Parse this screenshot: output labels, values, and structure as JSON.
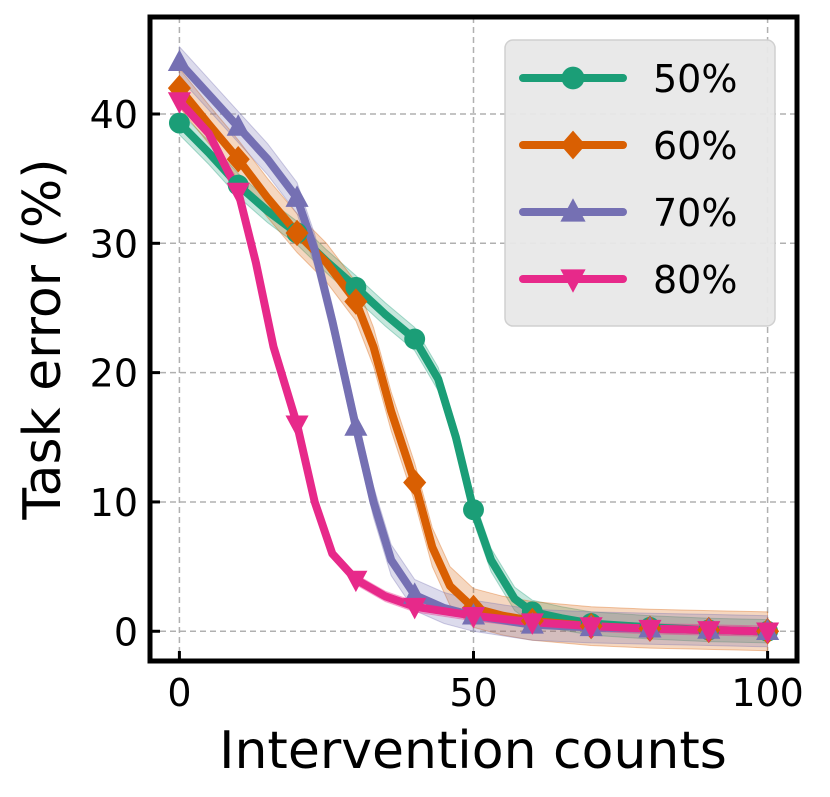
{
  "chart_data": {
    "type": "line",
    "title": "",
    "xlabel": "Intervention counts",
    "ylabel": "Task error (%)",
    "xlim": [
      -5,
      105
    ],
    "ylim": [
      -2.3,
      47.5
    ],
    "xticks": [
      0,
      50,
      100
    ],
    "yticks": [
      0,
      10,
      20,
      30,
      40
    ],
    "grid": true,
    "legend_position": "top-right",
    "x": [
      0,
      10,
      20,
      30,
      40,
      50,
      60,
      70,
      80,
      90,
      100
    ],
    "series": [
      {
        "name": "50%",
        "color": "#1b9e77",
        "marker": "circle",
        "values": [
          39.3,
          34.5,
          30.8,
          26.6,
          22.6,
          9.4,
          1.5,
          0.6,
          0.3,
          0.1,
          0.0
        ],
        "curve": [
          [
            0,
            39.3
          ],
          [
            5,
            37.0
          ],
          [
            10,
            34.5
          ],
          [
            15,
            32.5
          ],
          [
            20,
            30.8
          ],
          [
            25,
            28.6
          ],
          [
            30,
            26.6
          ],
          [
            35,
            24.5
          ],
          [
            40,
            22.6
          ],
          [
            44,
            19.5
          ],
          [
            47,
            15.0
          ],
          [
            50,
            9.4
          ],
          [
            53,
            5.5
          ],
          [
            57,
            2.5
          ],
          [
            60,
            1.5
          ],
          [
            65,
            1.0
          ],
          [
            70,
            0.6
          ],
          [
            80,
            0.3
          ],
          [
            90,
            0.1
          ],
          [
            100,
            0.0
          ]
        ],
        "band": 0.9
      },
      {
        "name": "60%",
        "color": "#d95f02",
        "marker": "diamond",
        "values": [
          42.0,
          36.5,
          30.8,
          25.5,
          11.5,
          1.8,
          0.8,
          0.4,
          0.2,
          0.1,
          0.0
        ],
        "curve": [
          [
            0,
            42.0
          ],
          [
            5,
            39.2
          ],
          [
            10,
            36.5
          ],
          [
            15,
            33.5
          ],
          [
            20,
            30.8
          ],
          [
            25,
            28.5
          ],
          [
            30,
            25.5
          ],
          [
            33,
            22.0
          ],
          [
            36,
            17.0
          ],
          [
            40,
            11.5
          ],
          [
            43,
            6.5
          ],
          [
            46,
            3.5
          ],
          [
            50,
            1.8
          ],
          [
            55,
            1.2
          ],
          [
            60,
            0.8
          ],
          [
            70,
            0.4
          ],
          [
            80,
            0.2
          ],
          [
            90,
            0.1
          ],
          [
            100,
            0.0
          ]
        ],
        "band": 1.5
      },
      {
        "name": "70%",
        "color": "#7570b3",
        "marker": "triangle-up",
        "values": [
          44.0,
          39.0,
          33.5,
          15.8,
          2.8,
          1.2,
          0.5,
          0.3,
          0.2,
          0.1,
          0.0
        ],
        "curve": [
          [
            0,
            44.0
          ],
          [
            5,
            41.5
          ],
          [
            10,
            39.0
          ],
          [
            15,
            36.5
          ],
          [
            20,
            33.5
          ],
          [
            23,
            29.5
          ],
          [
            26,
            24.0
          ],
          [
            30,
            15.8
          ],
          [
            33,
            10.0
          ],
          [
            36,
            5.5
          ],
          [
            40,
            2.8
          ],
          [
            45,
            1.8
          ],
          [
            50,
            1.2
          ],
          [
            60,
            0.5
          ],
          [
            70,
            0.3
          ],
          [
            80,
            0.2
          ],
          [
            90,
            0.1
          ],
          [
            100,
            0.0
          ]
        ],
        "band": 1.2
      },
      {
        "name": "80%",
        "color": "#e7298a",
        "marker": "triangle-down",
        "values": [
          41.0,
          34.0,
          16.0,
          4.0,
          1.9,
          1.2,
          0.7,
          0.4,
          0.2,
          0.1,
          0.0
        ],
        "curve": [
          [
            0,
            41.0
          ],
          [
            5,
            38.5
          ],
          [
            10,
            34.0
          ],
          [
            13,
            28.5
          ],
          [
            16,
            22.0
          ],
          [
            20,
            16.0
          ],
          [
            23,
            10.0
          ],
          [
            26,
            6.0
          ],
          [
            30,
            4.0
          ],
          [
            35,
            2.7
          ],
          [
            40,
            1.9
          ],
          [
            50,
            1.2
          ],
          [
            60,
            0.7
          ],
          [
            70,
            0.4
          ],
          [
            80,
            0.2
          ],
          [
            90,
            0.1
          ],
          [
            100,
            0.0
          ]
        ],
        "band": 0.4
      }
    ]
  }
}
